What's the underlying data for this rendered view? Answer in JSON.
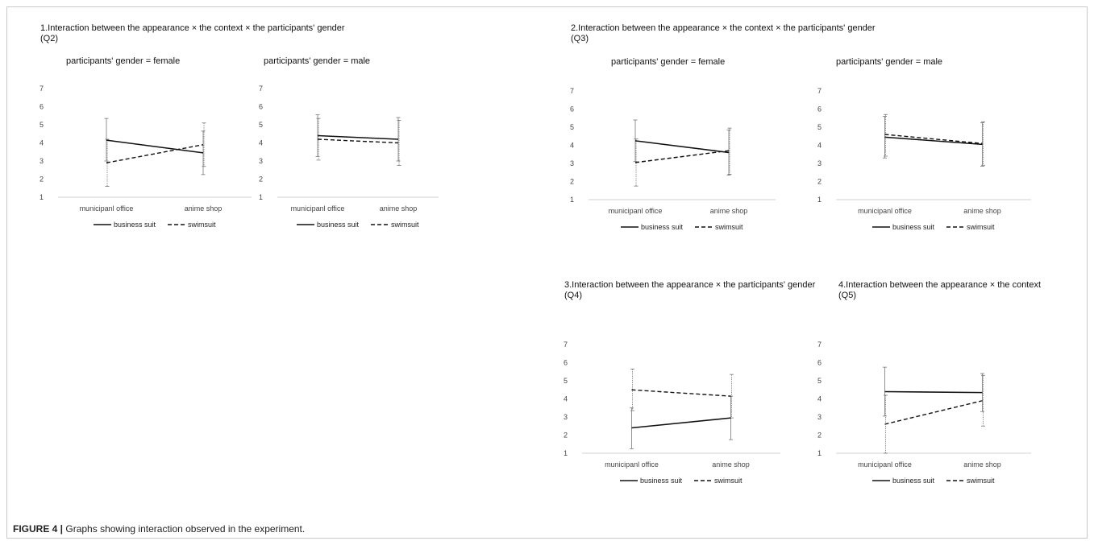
{
  "figure": {
    "caption_label": "FIGURE 4 |",
    "caption_text": " Graphs showing interaction observed in the experiment."
  },
  "panels": [
    {
      "title": "1.Interaction between the appearance × the context × the participants' gender\n(Q2)"
    },
    {
      "title": "2.Interaction between the appearance × the context × the participants' gender\n(Q3)"
    },
    {
      "title": "3.Interaction between the appearance × the participants' gender\n(Q4)"
    },
    {
      "title": "4.Interaction between the appearance × the context\n(Q5)"
    }
  ],
  "chart_data": [
    {
      "type": "line",
      "panel": 1,
      "title": "participants' gender = female",
      "categories": [
        "municipanl office",
        "anime shop"
      ],
      "ylim": [
        1,
        7
      ],
      "yticks": [
        1,
        2,
        3,
        4,
        5,
        6,
        7
      ],
      "series": [
        {
          "name": "business suit",
          "style": "solid",
          "values": [
            4.15,
            3.45
          ],
          "err_low": [
            3.0,
            2.25
          ],
          "err_high": [
            5.35,
            4.65
          ]
        },
        {
          "name": "swimsuit",
          "style": "dashed",
          "values": [
            2.9,
            3.9
          ],
          "err_low": [
            1.6,
            2.7
          ],
          "err_high": [
            4.2,
            5.1
          ]
        }
      ]
    },
    {
      "type": "line",
      "panel": 1,
      "title": "participants' gender = male",
      "categories": [
        "municipanl office",
        "anime shop"
      ],
      "ylim": [
        1,
        7
      ],
      "yticks": [
        1,
        2,
        3,
        4,
        5,
        6,
        7
      ],
      "series": [
        {
          "name": "business suit",
          "style": "solid",
          "values": [
            4.4,
            4.2
          ],
          "err_low": [
            3.25,
            3.0
          ],
          "err_high": [
            5.55,
            5.4
          ]
        },
        {
          "name": "swimsuit",
          "style": "dashed",
          "values": [
            4.2,
            4.0
          ],
          "err_low": [
            3.05,
            2.75
          ],
          "err_high": [
            5.35,
            5.25
          ]
        }
      ]
    },
    {
      "type": "line",
      "panel": 2,
      "title": "participants' gender = female",
      "categories": [
        "municipanl office",
        "anime shop"
      ],
      "ylim": [
        1,
        7
      ],
      "yticks": [
        1,
        2,
        3,
        4,
        5,
        6,
        7
      ],
      "series": [
        {
          "name": "business suit",
          "style": "solid",
          "values": [
            4.25,
            3.6
          ],
          "err_low": [
            3.1,
            2.35
          ],
          "err_high": [
            5.4,
            4.85
          ]
        },
        {
          "name": "swimsuit",
          "style": "dashed",
          "values": [
            3.05,
            3.7
          ],
          "err_low": [
            1.75,
            2.4
          ],
          "err_high": [
            4.35,
            4.95
          ]
        }
      ]
    },
    {
      "type": "line",
      "panel": 2,
      "title": "participants' gender = male",
      "categories": [
        "municipanl office",
        "anime shop"
      ],
      "ylim": [
        1,
        7
      ],
      "yticks": [
        1,
        2,
        3,
        4,
        5,
        6,
        7
      ],
      "series": [
        {
          "name": "business suit",
          "style": "solid",
          "values": [
            4.45,
            4.05
          ],
          "err_low": [
            3.3,
            2.85
          ],
          "err_high": [
            5.6,
            5.25
          ]
        },
        {
          "name": "swimsuit",
          "style": "dashed",
          "values": [
            4.6,
            4.1
          ],
          "err_low": [
            3.4,
            2.9
          ],
          "err_high": [
            5.7,
            5.3
          ]
        }
      ]
    },
    {
      "type": "line",
      "panel": 3,
      "categories": [
        "municipanl office",
        "anime shop"
      ],
      "ylim": [
        1,
        7
      ],
      "yticks": [
        1,
        2,
        3,
        4,
        5,
        6,
        7
      ],
      "series": [
        {
          "name": "business suit",
          "style": "solid",
          "values": [
            2.4,
            2.95
          ],
          "err_low": [
            1.25,
            1.75
          ],
          "err_high": [
            3.5,
            4.15
          ]
        },
        {
          "name": "swimsuit",
          "style": "dashed",
          "values": [
            4.5,
            4.15
          ],
          "err_low": [
            3.35,
            2.95
          ],
          "err_high": [
            5.65,
            5.35
          ]
        }
      ]
    },
    {
      "type": "line",
      "panel": 4,
      "categories": [
        "municipanl office",
        "anime shop"
      ],
      "ylim": [
        1,
        7
      ],
      "yticks": [
        1,
        2,
        3,
        4,
        5,
        6,
        7
      ],
      "series": [
        {
          "name": "business suit",
          "style": "solid",
          "values": [
            4.4,
            4.35
          ],
          "err_low": [
            3.05,
            3.3
          ],
          "err_high": [
            5.75,
            5.4
          ]
        },
        {
          "name": "swimsuit",
          "style": "dashed",
          "values": [
            2.6,
            3.9
          ],
          "err_low": [
            1.0,
            2.5
          ],
          "err_high": [
            4.2,
            5.3
          ]
        }
      ]
    }
  ]
}
